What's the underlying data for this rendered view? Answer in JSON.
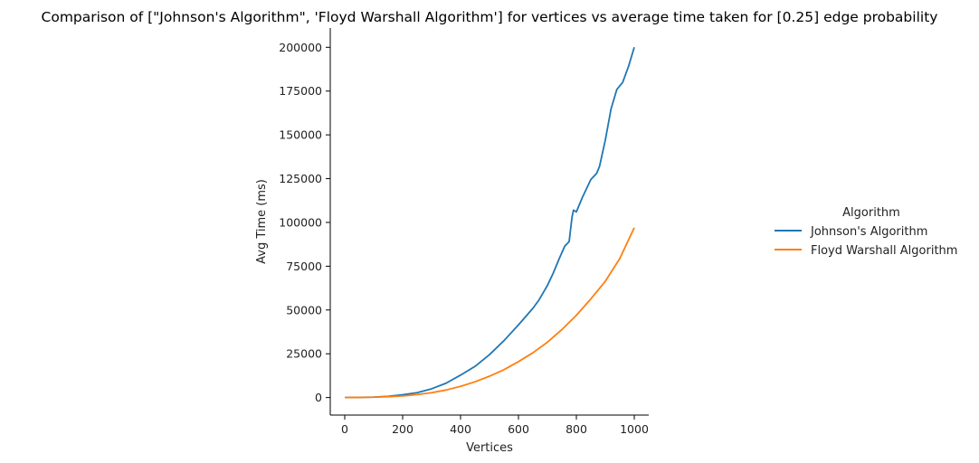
{
  "chart_data": {
    "type": "line",
    "title": "Comparison of [\"Johnson's Algorithm\", 'Floyd Warshall Algorithm'] for vertices vs average time taken for [0.25] edge probability",
    "xlabel": "Vertices",
    "ylabel": "Avg Time (ms)",
    "xlim": [
      -50,
      1050
    ],
    "ylim": [
      -10000,
      211000
    ],
    "xticks": [
      0,
      200,
      400,
      600,
      800,
      1000
    ],
    "yticks": [
      0,
      25000,
      50000,
      75000,
      100000,
      125000,
      150000,
      175000,
      200000
    ],
    "grid": false,
    "legend": {
      "title": "Algorithm",
      "placement": "right-outside"
    },
    "series": [
      {
        "name": "Johnson's Algorithm",
        "color": "#1f77b4",
        "x": [
          0,
          50,
          100,
          150,
          200,
          250,
          300,
          350,
          400,
          450,
          500,
          550,
          600,
          650,
          670,
          700,
          720,
          740,
          760,
          775,
          785,
          790,
          800,
          820,
          850,
          870,
          880,
          900,
          920,
          940,
          960,
          980,
          1000
        ],
        "values": [
          0,
          100,
          250,
          700,
          1600,
          2800,
          5000,
          8200,
          12800,
          17800,
          24500,
          32500,
          41500,
          51000,
          55500,
          64000,
          71000,
          79000,
          86500,
          89000,
          103000,
          107000,
          106000,
          114000,
          124500,
          128000,
          132000,
          147000,
          165000,
          176000,
          180000,
          189000,
          200000
        ]
      },
      {
        "name": "Floyd Warshall Algorithm",
        "color": "#ff7f0e",
        "x": [
          0,
          50,
          100,
          150,
          200,
          250,
          300,
          350,
          400,
          450,
          500,
          550,
          600,
          650,
          700,
          750,
          800,
          850,
          900,
          950,
          1000
        ],
        "values": [
          0,
          100,
          200,
          500,
          900,
          1700,
          2800,
          4300,
          6400,
          9000,
          12200,
          15900,
          20500,
          25600,
          31600,
          38800,
          47000,
          56300,
          66400,
          79400,
          97000
        ]
      }
    ]
  }
}
